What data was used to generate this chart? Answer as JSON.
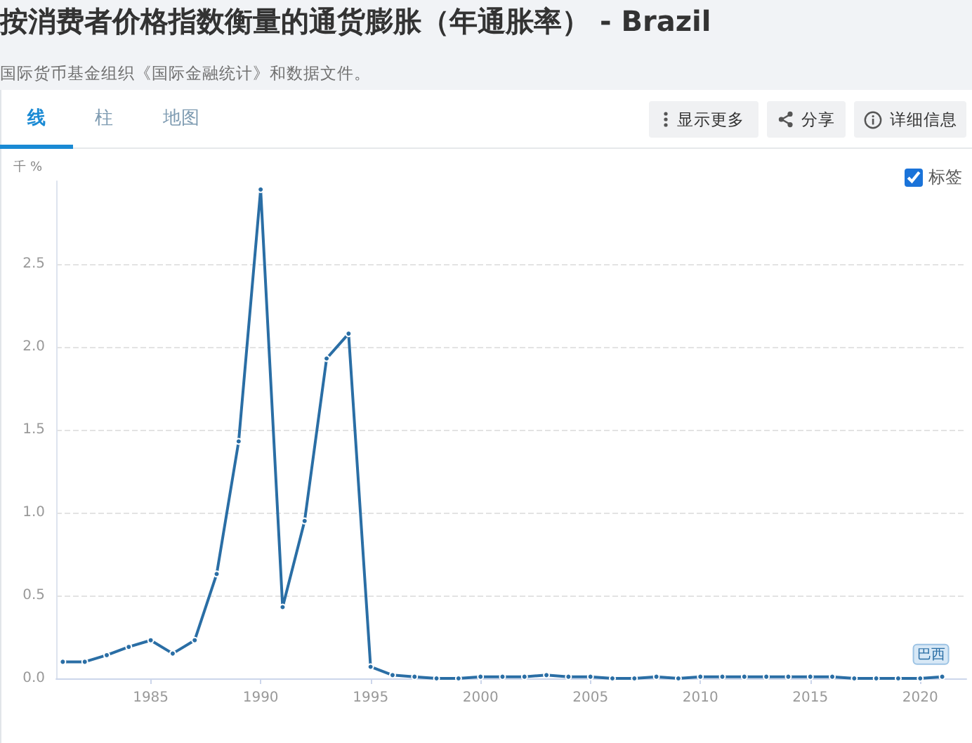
{
  "chart_data": {
    "type": "line",
    "title": "按消费者价格指数衡量的通货膨胀（年通胀率） - Brazil",
    "subtitle": "国际货币基金组织《国际金融统计》和数据文件。",
    "ylabel": "千 %",
    "annotations": [
      "线",
      "柱",
      "地图",
      "显示更多",
      "分享",
      "详细信息",
      "标签"
    ],
    "x": [
      1981,
      1982,
      1983,
      1984,
      1985,
      1986,
      1987,
      1988,
      1989,
      1990,
      1991,
      1992,
      1993,
      1994,
      1995,
      1996,
      1997,
      1998,
      1999,
      2000,
      2001,
      2002,
      2003,
      2004,
      2005,
      2006,
      2007,
      2008,
      2009,
      2010,
      2011,
      2012,
      2013,
      2014,
      2015,
      2016,
      2017,
      2018,
      2019,
      2020,
      2021
    ],
    "series": [
      {
        "name": "巴西",
        "color": "#2a6ea5",
        "values": [
          0.1,
          0.1,
          0.14,
          0.19,
          0.23,
          0.15,
          0.23,
          0.63,
          1.43,
          2.95,
          0.43,
          0.95,
          1.93,
          2.08,
          0.07,
          0.02,
          0.01,
          0.0,
          0.0,
          0.01,
          0.01,
          0.01,
          0.02,
          0.01,
          0.01,
          0.0,
          0.0,
          0.01,
          0.0,
          0.01,
          0.01,
          0.01,
          0.01,
          0.01,
          0.01,
          0.01,
          0.0,
          0.0,
          0.0,
          0.0,
          0.01
        ]
      }
    ],
    "xlim": [
      1980.7,
      2022.1
    ],
    "xticks": [
      1985,
      1990,
      1995,
      2000,
      2005,
      2010,
      2015,
      2020
    ],
    "ylim": [
      0,
      3
    ],
    "yticks": [
      {
        "value": 0,
        "label": "0.0"
      },
      0.5,
      {
        "value": 1,
        "label": "1.0"
      },
      1.5,
      {
        "value": 2,
        "label": "2.0"
      },
      2.5
    ],
    "grid": "y",
    "legend": false,
    "marker": "circle",
    "line_style": "solid"
  }
}
